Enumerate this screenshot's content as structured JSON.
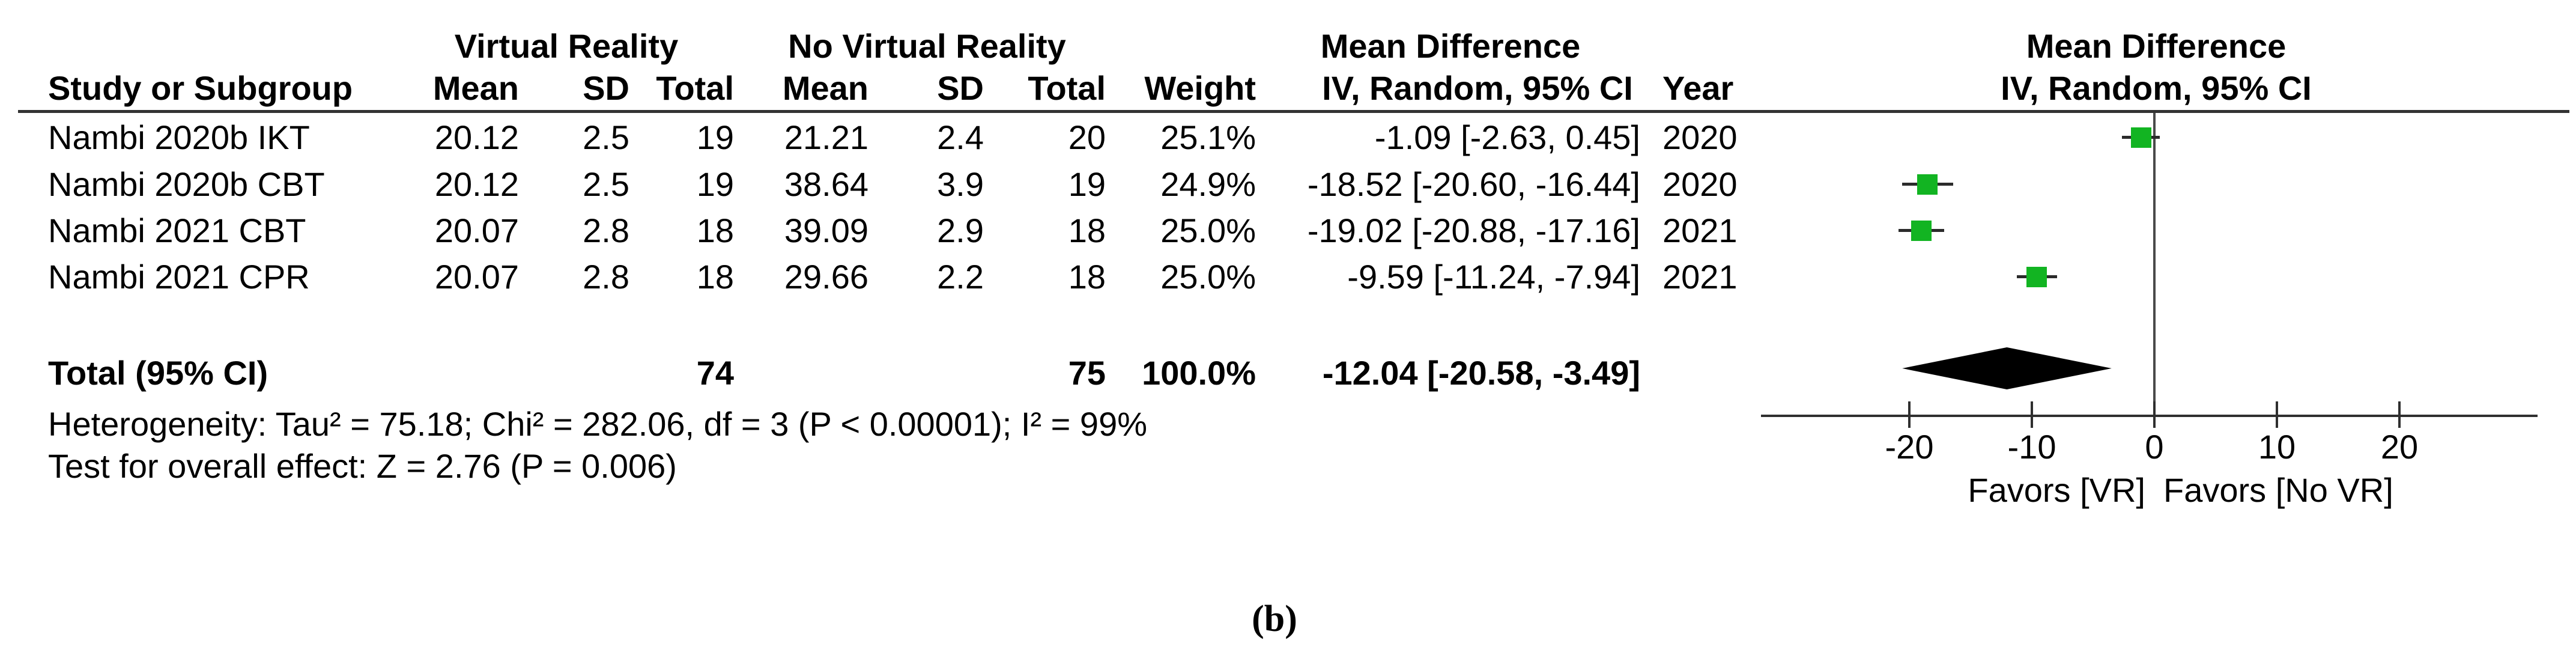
{
  "figure": {
    "caption": "(b)"
  },
  "table": {
    "group_headers": {
      "virtual_reality": "Virtual Reality",
      "no_virtual_reality": "No Virtual Reality",
      "mean_difference": "Mean Difference",
      "mean_difference_plot": "Mean Difference"
    },
    "columns": {
      "study": "Study or Subgroup",
      "vr_mean": "Mean",
      "vr_sd": "SD",
      "vr_total": "Total",
      "novr_mean": "Mean",
      "novr_sd": "SD",
      "novr_total": "Total",
      "weight": "Weight",
      "ci": "IV, Random, 95% CI",
      "year": "Year",
      "ci_plot": "IV, Random, 95% CI"
    },
    "rows": [
      {
        "study": "Nambi 2020b IKT",
        "vr_mean": "20.12",
        "vr_sd": "2.5",
        "vr_total": "19",
        "novr_mean": "21.21",
        "novr_sd": "2.4",
        "novr_total": "20",
        "weight": "25.1%",
        "ci": "-1.09 [-2.63, 0.45]",
        "year": "2020"
      },
      {
        "study": "Nambi 2020b CBT",
        "vr_mean": "20.12",
        "vr_sd": "2.5",
        "vr_total": "19",
        "novr_mean": "38.64",
        "novr_sd": "3.9",
        "novr_total": "19",
        "weight": "24.9%",
        "ci": "-18.52 [-20.60, -16.44]",
        "year": "2020"
      },
      {
        "study": "Nambi 2021 CBT",
        "vr_mean": "20.07",
        "vr_sd": "2.8",
        "vr_total": "18",
        "novr_mean": "39.09",
        "novr_sd": "2.9",
        "novr_total": "18",
        "weight": "25.0%",
        "ci": "-19.02 [-20.88, -17.16]",
        "year": "2021"
      },
      {
        "study": "Nambi 2021 CPR",
        "vr_mean": "20.07",
        "vr_sd": "2.8",
        "vr_total": "18",
        "novr_mean": "29.66",
        "novr_sd": "2.2",
        "novr_total": "18",
        "weight": "25.0%",
        "ci": "-9.59 [-11.24, -7.94]",
        "year": "2021"
      }
    ],
    "total_row": {
      "label": "Total (95% CI)",
      "vr_total": "74",
      "novr_total": "75",
      "weight": "100.0%",
      "ci": "-12.04 [-20.58, -3.49]"
    },
    "footnotes": {
      "heterogeneity": "Heterogeneity: Tau² = 75.18; Chi² = 282.06, df = 3 (P < 0.00001); I² = 99%",
      "overall_effect": "Test for overall effect: Z = 2.76 (P = 0.006)"
    }
  },
  "chart_data": {
    "type": "forest",
    "title": "Mean Difference, IV, Random, 95% CI",
    "x_ticks": [
      -20,
      -10,
      0,
      10,
      20
    ],
    "xlim": [
      -32,
      31
    ],
    "zero_line": 0,
    "favors_left": "Favors [VR]",
    "favors_right": "Favors [No VR]",
    "marker_color": "#12b422",
    "studies": [
      {
        "label": "Nambi 2020b IKT",
        "mean": -1.09,
        "ci_low": -2.63,
        "ci_high": 0.45,
        "weight_pct": 25.1,
        "year": 2020
      },
      {
        "label": "Nambi 2020b CBT",
        "mean": -18.52,
        "ci_low": -20.6,
        "ci_high": -16.44,
        "weight_pct": 24.9,
        "year": 2020
      },
      {
        "label": "Nambi 2021 CBT",
        "mean": -19.02,
        "ci_low": -20.88,
        "ci_high": -17.16,
        "weight_pct": 25.0,
        "year": 2021
      },
      {
        "label": "Nambi 2021 CPR",
        "mean": -9.59,
        "ci_low": -11.24,
        "ci_high": -7.94,
        "weight_pct": 25.0,
        "year": 2021
      }
    ],
    "total": {
      "label": "Total (95% CI)",
      "mean": -12.04,
      "ci_low": -20.58,
      "ci_high": -3.49
    }
  }
}
